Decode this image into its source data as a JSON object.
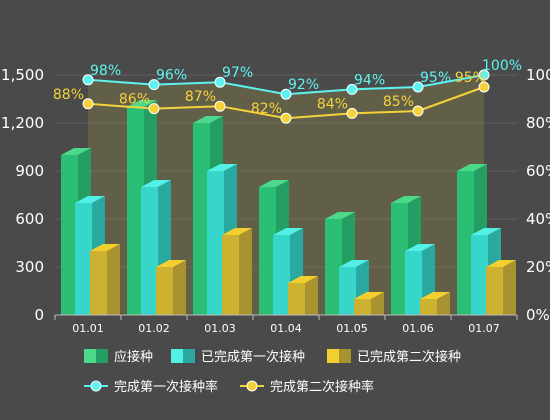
{
  "chart_data": {
    "type": "bar",
    "categories": [
      "01.01",
      "01.02",
      "01.03",
      "01.04",
      "01.05",
      "01.06",
      "01.07"
    ],
    "bar_series": [
      {
        "name": "应接种",
        "values": [
          1000,
          1300,
          1200,
          800,
          600,
          700,
          900
        ],
        "colors": [
          "#4cd98a",
          "#2bbf75",
          "#259e63"
        ]
      },
      {
        "name": "已完成第一次接种",
        "values": [
          700,
          800,
          900,
          500,
          300,
          400,
          500
        ],
        "colors": [
          "#52f0e6",
          "#36d6cb",
          "#2aa9a1"
        ]
      },
      {
        "name": "已完成第二次接种",
        "values": [
          400,
          300,
          500,
          200,
          100,
          100,
          300
        ],
        "colors": [
          "#f3cf30",
          "#cdb232",
          "#a99230"
        ]
      }
    ],
    "line_series": [
      {
        "name": "完成第一次接种率",
        "values": [
          98,
          96,
          97,
          92,
          94,
          95,
          100
        ],
        "labels": [
          "98%",
          "96%",
          "97%",
          "92%",
          "94%",
          "95%",
          "100%"
        ],
        "color": "#5ef3f0"
      },
      {
        "name": "完成第二次接种率",
        "values": [
          88,
          86,
          87,
          82,
          84,
          85,
          95
        ],
        "labels": [
          "88%",
          "86%",
          "87%",
          "82%",
          "84%",
          "85%",
          "95%"
        ],
        "color": "#f5d23a"
      }
    ],
    "y_left": {
      "ylim": [
        0,
        1500
      ],
      "ticks": [
        "0",
        "300",
        "600",
        "900",
        "1,200",
        "1,500"
      ]
    },
    "y_right": {
      "ylim": [
        0,
        100
      ],
      "ticks": [
        "0%",
        "20%",
        "40%",
        "60%",
        "80%",
        "100%"
      ]
    },
    "grid": true,
    "legend_position": "bottom"
  }
}
